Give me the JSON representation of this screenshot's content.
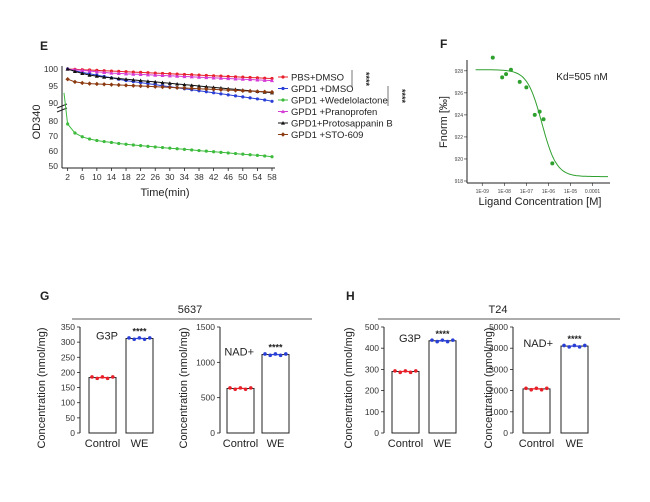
{
  "panels": {
    "E": "E",
    "F": "F",
    "G": "G",
    "H": "H"
  },
  "chart_data": [
    {
      "id": "E",
      "type": "line",
      "xlabel": "Time(min)",
      "ylabel": "OD340",
      "x": [
        2,
        4,
        6,
        8,
        10,
        12,
        14,
        16,
        18,
        20,
        22,
        24,
        26,
        28,
        30,
        32,
        34,
        36,
        38,
        40,
        42,
        44,
        46,
        48,
        50,
        52,
        54,
        56,
        58
      ],
      "xticks": [
        "2",
        "6",
        "10",
        "14",
        "18",
        "22",
        "26",
        "30",
        "34",
        "38",
        "42",
        "46",
        "50",
        "54",
        "58"
      ],
      "upper_ylim": [
        90,
        100
      ],
      "upper_yticks": [
        "100",
        "95",
        "90"
      ],
      "lower_ylim": [
        50,
        80
      ],
      "lower_yticks": [
        "80",
        "70",
        "60",
        "50"
      ],
      "significance": [
        "****",
        "****"
      ],
      "series": [
        {
          "name": "PBS+DMSO",
          "color": "#e8202a",
          "marker": "circle",
          "values": [
            100,
            99.9,
            99.8,
            99.7,
            99.6,
            99.5,
            99.4,
            99.3,
            99.2,
            99.1,
            99,
            98.9,
            98.8,
            98.7,
            98.6,
            98.5,
            98.4,
            98.3,
            98.2,
            98.1,
            98,
            97.9,
            97.8,
            97.7,
            97.6,
            97.5,
            97.4,
            97.3,
            97.2
          ]
        },
        {
          "name": "GPD1 +DMSO",
          "color": "#2a3fd6",
          "marker": "circle",
          "values": [
            100,
            99.5,
            99,
            98.6,
            98.2,
            97.8,
            97.4,
            97,
            96.6,
            96.3,
            96,
            95.7,
            95.4,
            95.1,
            94.8,
            94.5,
            94.2,
            93.9,
            93.6,
            93.3,
            93,
            92.7,
            92.4,
            92.1,
            91.8,
            91.5,
            91.2,
            90.9,
            90.5
          ]
        },
        {
          "name": "GPD1 +Wedelolactone",
          "color": "#3dbb3d",
          "marker": "circle",
          "values": [
            78,
            72,
            69.5,
            68,
            67,
            66.3,
            65.7,
            65,
            64.5,
            64,
            63.6,
            63.1,
            62.7,
            62.3,
            61.9,
            61.5,
            61.1,
            60.7,
            60.3,
            59.9,
            59.5,
            59.1,
            58.7,
            58.3,
            57.9,
            57.5,
            57.1,
            56.7,
            56.2
          ]
        },
        {
          "name": "GPD1 +Pranoprofen",
          "color": "#d53bd5",
          "marker": "triangle",
          "values": [
            100,
            99.8,
            99.6,
            99.4,
            99.2,
            99,
            98.8,
            98.7,
            98.6,
            98.5,
            98.4,
            98.3,
            98.2,
            98.1,
            98,
            97.9,
            97.8,
            97.7,
            97.6,
            97.5,
            97.4,
            97.3,
            97.2,
            97.1,
            97,
            96.9,
            96.8,
            96.7,
            96.6
          ]
        },
        {
          "name": "GPD1+Protosappanin B",
          "color": "#111111",
          "marker": "triangle",
          "values": [
            100,
            99.3,
            98.7,
            98.2,
            97.9,
            97.6,
            97.4,
            97.2,
            97,
            96.8,
            96.6,
            96.4,
            96.2,
            96,
            95.8,
            95.6,
            95.4,
            95.2,
            95,
            94.8,
            94.6,
            94.4,
            94.2,
            94,
            93.8,
            93.6,
            93.4,
            93.2,
            93
          ]
        },
        {
          "name": "GPD1 +STO-609",
          "color": "#8b3a10",
          "marker": "diamond",
          "values": [
            97,
            96.2,
            95.9,
            95.7,
            95.6,
            95.5,
            95.4,
            95.3,
            95.2,
            95.1,
            95,
            94.9,
            94.8,
            94.7,
            94.6,
            94.5,
            94.4,
            94.3,
            94.2,
            94.1,
            94,
            93.9,
            93.8,
            93.7,
            93.6,
            93.5,
            93.4,
            93.3,
            93.2
          ]
        }
      ]
    },
    {
      "id": "F",
      "type": "scatter",
      "xlabel": "Ligand Concentration [M]",
      "ylabel": "Fnorm [‰]",
      "annotation": "Kd=505 nM",
      "xticks": [
        "1E-09",
        "1E-08",
        "1E-07",
        "1E-06",
        "1E-05",
        "0.0001"
      ],
      "yticks": [
        "928",
        "926",
        "924",
        "922",
        "920",
        "918"
      ],
      "ylim": [
        918,
        928.8
      ],
      "color": "#2ea02e",
      "points": [
        {
          "x": 3e-09,
          "y": 929.2
        },
        {
          "x": 8e-09,
          "y": 927.4
        },
        {
          "x": 1.2e-08,
          "y": 927.7
        },
        {
          "x": 2e-08,
          "y": 928.1
        },
        {
          "x": 5e-08,
          "y": 927.0
        },
        {
          "x": 1e-07,
          "y": 926.5
        },
        {
          "x": 2.4e-07,
          "y": 924.0
        },
        {
          "x": 4e-07,
          "y": 924.3
        },
        {
          "x": 6e-07,
          "y": 923.6
        },
        {
          "x": 1.5e-06,
          "y": 919.6
        }
      ],
      "fit": {
        "top": 928.1,
        "bottom": 918.4,
        "kd": 5.05e-07
      }
    },
    {
      "id": "G-G3P",
      "type": "bar",
      "group_title": "5637",
      "subtitle": "G3P",
      "ylabel": "Concentration (nmol/mg)",
      "ylim": [
        0,
        350
      ],
      "yticks": [
        "350",
        "300",
        "250",
        "200",
        "150",
        "100",
        "50",
        "0"
      ],
      "categories": [
        "Control",
        "WE"
      ],
      "values": [
        183,
        312
      ],
      "colors": [
        "#e8202a",
        "#2a3fd6"
      ],
      "significance": "****"
    },
    {
      "id": "G-NAD",
      "type": "bar",
      "subtitle": "NAD+",
      "ylabel": "Concentration (nmol/mg)",
      "ylim": [
        0,
        1500
      ],
      "yticks": [
        "1500",
        "1000",
        "500",
        "0"
      ],
      "categories": [
        "Control",
        "WE"
      ],
      "values": [
        630,
        1110
      ],
      "colors": [
        "#e8202a",
        "#2a3fd6"
      ],
      "significance": "****"
    },
    {
      "id": "H-G3P",
      "type": "bar",
      "group_title": "T24",
      "subtitle": "G3P",
      "ylabel": "Concentration (nmol/mg)",
      "ylim": [
        0,
        500
      ],
      "yticks": [
        "500",
        "400",
        "300",
        "200",
        "100",
        "0"
      ],
      "categories": [
        "Control",
        "WE"
      ],
      "values": [
        290,
        435
      ],
      "colors": [
        "#e8202a",
        "#2a3fd6"
      ],
      "significance": "****"
    },
    {
      "id": "H-NAD",
      "type": "bar",
      "subtitle": "NAD+",
      "ylabel": "Concentration (nmol/mg)",
      "ylim": [
        0,
        5000
      ],
      "yticks": [
        "5000",
        "4000",
        "3000",
        "2000",
        "1000",
        "0"
      ],
      "categories": [
        "Control",
        "WE"
      ],
      "values": [
        2080,
        4100
      ],
      "colors": [
        "#e8202a",
        "#2a3fd6"
      ],
      "significance": "****"
    }
  ]
}
